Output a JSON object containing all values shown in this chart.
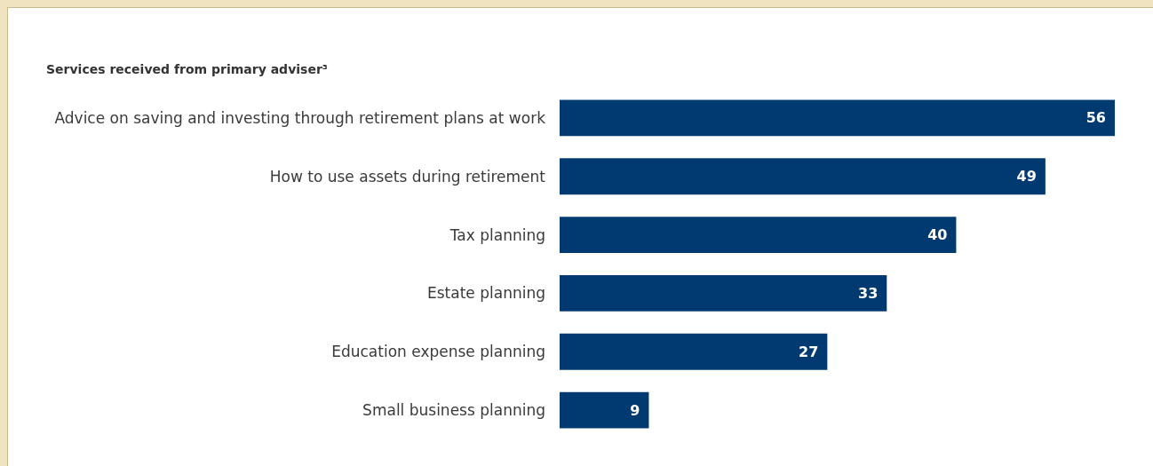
{
  "chart_data": {
    "type": "bar",
    "orientation": "horizontal",
    "title": "Services received from primary adviser³",
    "categories": [
      "Advice on saving and investing through retirement plans at work",
      "How to use assets during retirement",
      "Tax planning",
      "Estate planning",
      "Education expense planning",
      "Small business planning"
    ],
    "values": [
      56,
      49,
      40,
      33,
      27,
      9
    ],
    "color": "#003a70",
    "data_labels": true
  }
}
